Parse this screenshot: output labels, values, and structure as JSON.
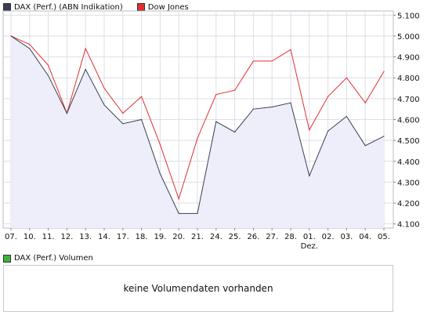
{
  "chart_data": {
    "type": "line",
    "categories": [
      "07.",
      "10.",
      "11.",
      "12.",
      "13.",
      "14.",
      "17.",
      "18.",
      "19.",
      "20.",
      "21.",
      "24.",
      "25.",
      "26.",
      "27.",
      "28.",
      "01.",
      "02.",
      "03.",
      "04.",
      "05."
    ],
    "category_sublabels": {
      "16": "Dez."
    },
    "series": [
      {
        "name": "DAX (Perf.) (ABN Indikation)",
        "color": "#3a3f55",
        "values": [
          5000,
          4940,
          4810,
          4630,
          4840,
          4670,
          4580,
          4600,
          4340,
          4150,
          4150,
          4590,
          4540,
          4650,
          4660,
          4680,
          4330,
          4545,
          4615,
          4475,
          4520
        ]
      },
      {
        "name": "Dow Jones",
        "color": "#e03030",
        "values": [
          5000,
          4960,
          4860,
          4630,
          4940,
          4750,
          4630,
          4710,
          4480,
          4220,
          4510,
          4720,
          4740,
          4880,
          4880,
          4935,
          4550,
          4710,
          4800,
          4680,
          4830
        ]
      }
    ],
    "yticks": [
      "5.100",
      "5.000",
      "4.900",
      "4.800",
      "4.700",
      "4.600",
      "4.500",
      "4.400",
      "4.300",
      "4.200",
      "4.100"
    ],
    "ylim": [
      4080,
      5120
    ],
    "grid": true,
    "fill_under_first_series": "#eeeefa"
  },
  "legend": {
    "dax_label": "DAX (Perf.) (ABN Indikation)",
    "dax_color": "#3a3f55",
    "dow_label": "Dow Jones",
    "dow_color": "#e03030"
  },
  "volume": {
    "legend_label": "DAX (Perf.) Volumen",
    "legend_color": "#3cb43c",
    "message": "keine Volumendaten vorhanden"
  }
}
